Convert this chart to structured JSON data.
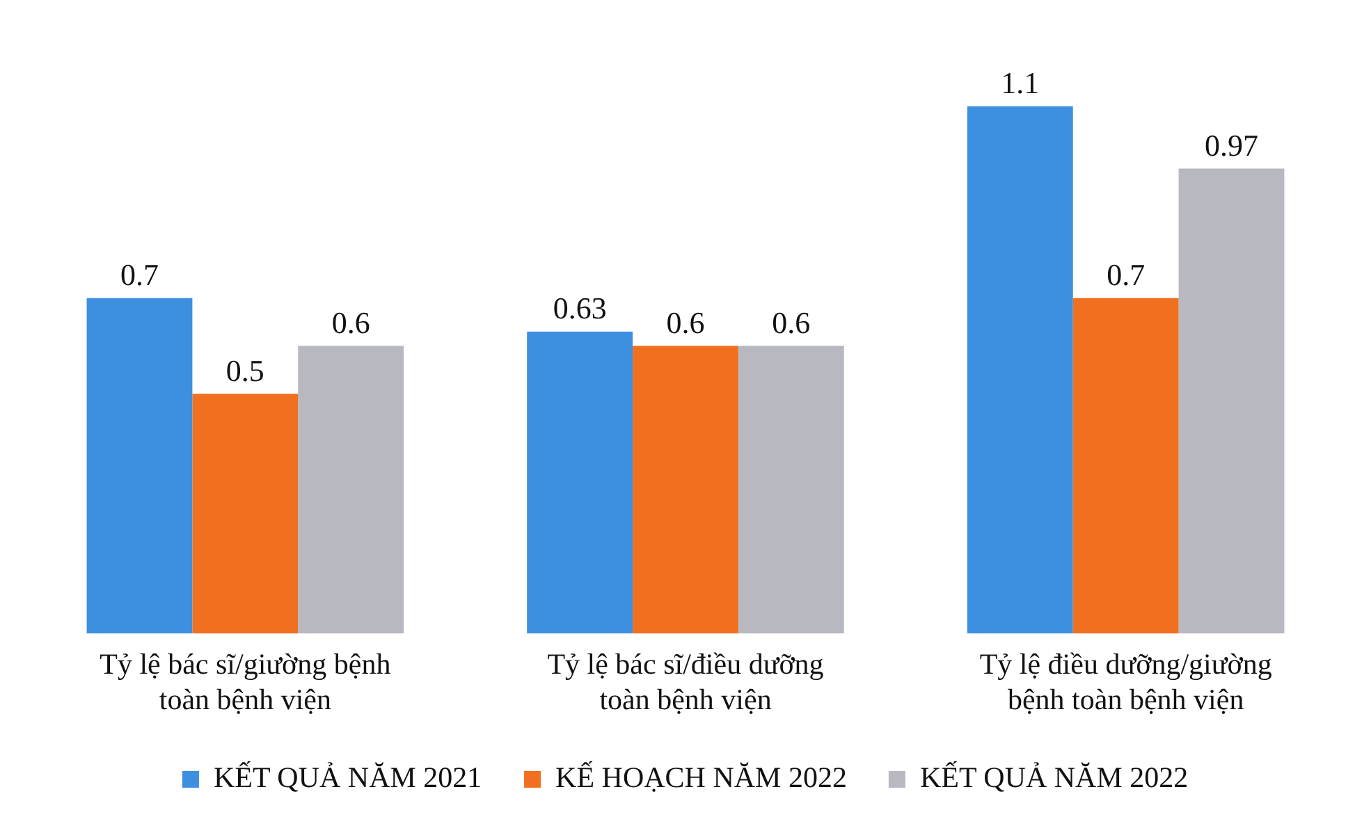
{
  "chart_data": {
    "type": "bar",
    "categories": [
      "Tỷ lệ bác sĩ/giường bệnh toàn bệnh viện",
      "Tỷ lệ bác sĩ/điều dưỡng toàn bệnh viện",
      "Tỷ lệ điều dưỡng/giường bệnh toàn bệnh viện"
    ],
    "series": [
      {
        "name": "KẾT QUẢ NĂM 2021",
        "color": "#3d8fe0",
        "values": [
          0.7,
          0.63,
          1.1
        ]
      },
      {
        "name": "KẾ HOẠCH NĂM 2022",
        "color": "#f07020",
        "values": [
          0.5,
          0.6,
          0.7
        ]
      },
      {
        "name": "KẾT QUẢ NĂM 2022",
        "color": "#b8b8c0",
        "values": [
          0.6,
          0.6,
          0.97
        ]
      }
    ],
    "data_labels": true,
    "legend": "bottom",
    "grid": false,
    "tick_labels": "x"
  }
}
